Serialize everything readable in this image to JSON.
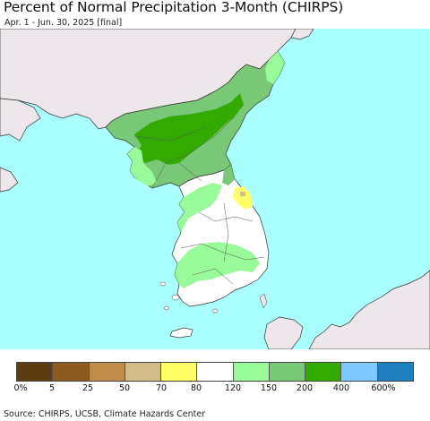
{
  "header": {
    "title": "Percent of Normal Precipitation 3-Month (CHIRPS)",
    "subtitle": "Apr. 1 - Jun. 30, 2025 [final]"
  },
  "map": {
    "sea_color": "#aaffff",
    "land_outside_color": "#ede6ea",
    "border_color": "#333333",
    "regions": [
      {
        "name": "north-korea-northeast",
        "class": "150-200",
        "color": "#78c878"
      },
      {
        "name": "north-korea-central",
        "class": "200-400",
        "color": "#33aa00"
      },
      {
        "name": "north-korea-coast",
        "class": "120-150",
        "color": "#98fa98"
      },
      {
        "name": "south-korea-west",
        "class": "120-150",
        "color": "#98fa98"
      },
      {
        "name": "south-korea-east",
        "class": "80-120",
        "color": "#ffffff"
      },
      {
        "name": "gangwon-spot",
        "class": "70-80",
        "color": "#ffff66"
      }
    ]
  },
  "legend": {
    "colors": [
      "#5a3c10",
      "#8c5a1e",
      "#c08c4a",
      "#d2bd8a",
      "#ffff66",
      "#ffffff",
      "#98fa98",
      "#78c878",
      "#33aa00",
      "#7fc8ff",
      "#1e7ebe"
    ],
    "labels": [
      "0%",
      "5",
      "25",
      "50",
      "70",
      "80",
      "120",
      "150",
      "200",
      "400",
      "600%"
    ]
  },
  "footer": {
    "source": "Source: CHIRPS, UCSB, Climate Hazards Center"
  }
}
